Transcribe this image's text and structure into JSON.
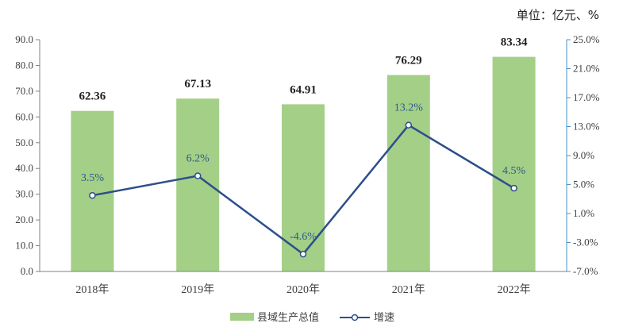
{
  "chart_data": {
    "type": "bar+line",
    "unit_label": "单位：亿元、%",
    "categories": [
      "2018年",
      "2019年",
      "2020年",
      "2021年",
      "2022年"
    ],
    "series": [
      {
        "name": "县域生产总值",
        "type": "bar",
        "axis": "left",
        "values": [
          62.36,
          67.13,
          64.91,
          76.29,
          83.34
        ],
        "labels": [
          "62.36",
          "67.13",
          "64.91",
          "76.29",
          "83.34"
        ],
        "color": "#A3CF87"
      },
      {
        "name": "增速",
        "type": "line",
        "axis": "right",
        "values": [
          3.5,
          6.2,
          -4.6,
          13.2,
          4.5
        ],
        "labels": [
          "3.5%",
          "6.2%",
          "-4.6%",
          "13.2%",
          "4.5%"
        ],
        "color": "#2E4E8C"
      }
    ],
    "y_left": {
      "min": 0,
      "max": 90,
      "step": 10,
      "tick_labels": [
        "0.0",
        "10.0",
        "20.0",
        "30.0",
        "40.0",
        "50.0",
        "60.0",
        "70.0",
        "80.0",
        "90.0"
      ]
    },
    "y_right": {
      "min": -7,
      "max": 25,
      "step": 4,
      "tick_labels": [
        "-7.0%",
        "-3.0%",
        "1.0%",
        "5.0%",
        "9.0%",
        "13.0%",
        "17.0%",
        "21.0%",
        "25.0%"
      ]
    },
    "grid": false,
    "legend_position": "bottom"
  }
}
